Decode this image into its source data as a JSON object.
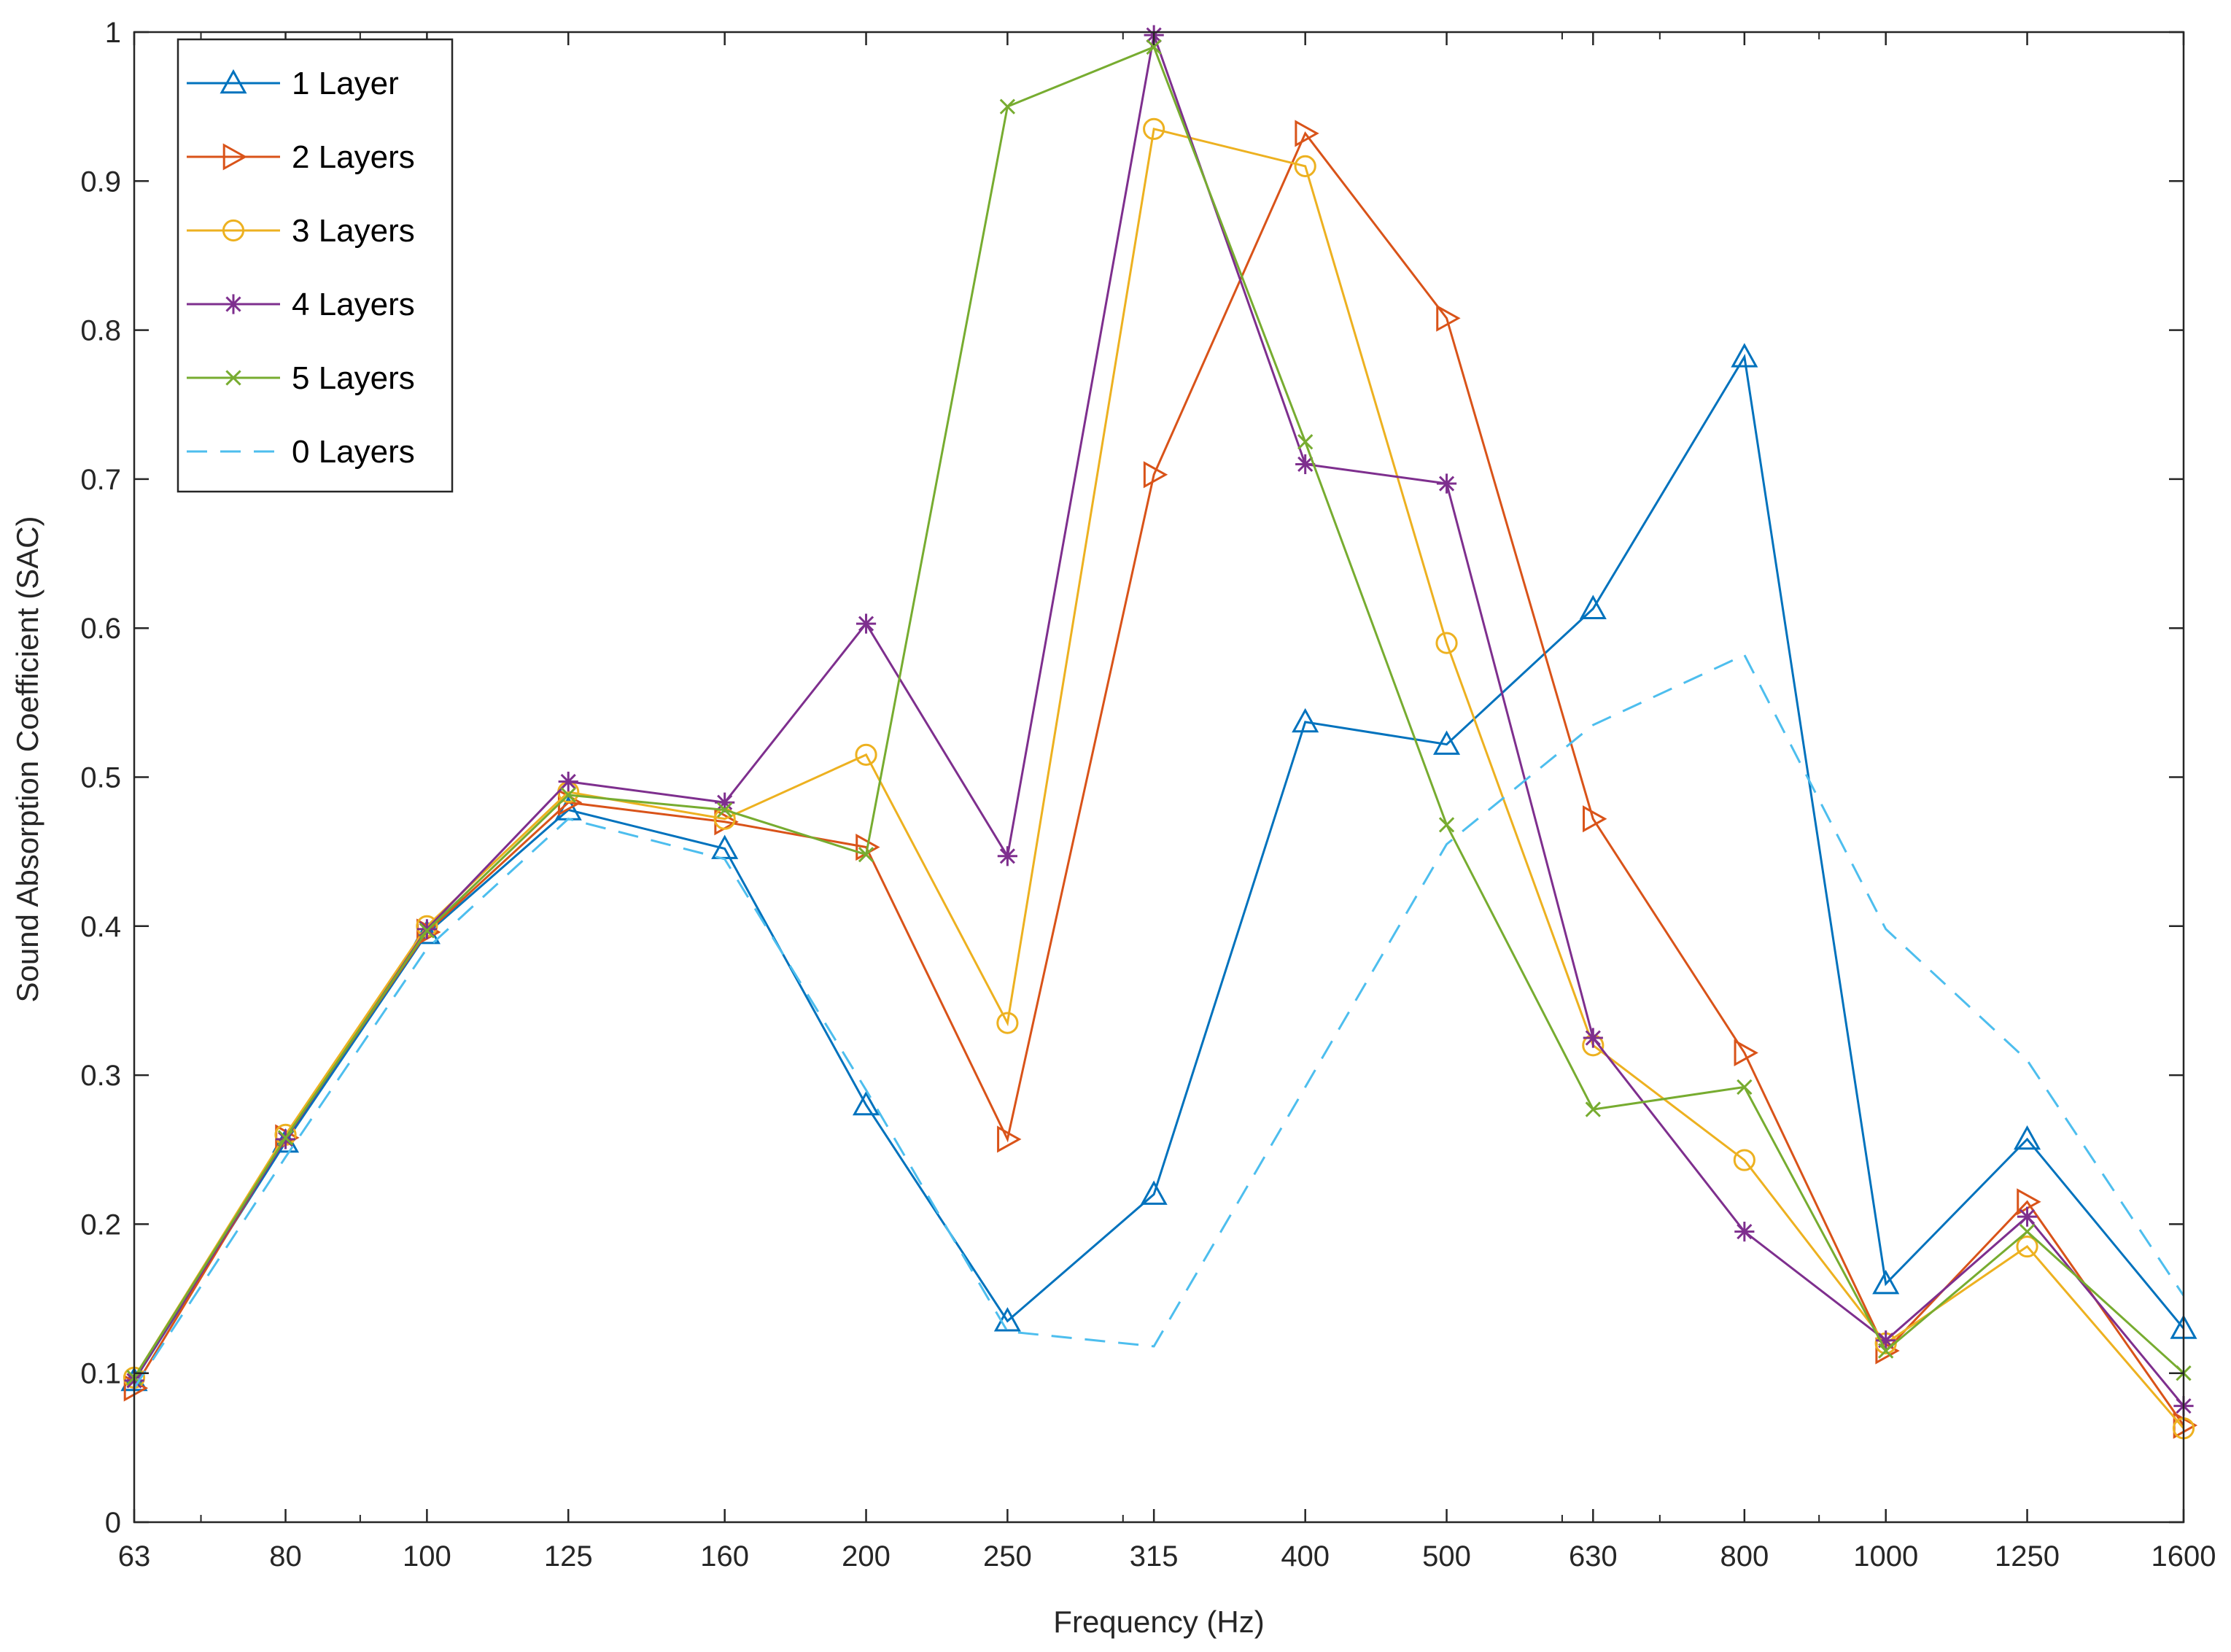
{
  "chart_data": {
    "type": "line",
    "xlabel": "Frequency (Hz)",
    "ylabel": "Sound Absorption Coefficient (SAC)",
    "categories": [
      "63",
      "80",
      "100",
      "125",
      "160",
      "200",
      "250",
      "315",
      "400",
      "500",
      "630",
      "800",
      "1000",
      "1250",
      "1600"
    ],
    "x_scale": "log",
    "ylim": [
      0,
      1
    ],
    "yticks": [
      "0",
      "0.1",
      "0.2",
      "0.3",
      "0.4",
      "0.5",
      "0.6",
      "0.7",
      "0.8",
      "0.9",
      "1"
    ],
    "grid": false,
    "legend_position": "top-left",
    "series": [
      {
        "name": "1 Layer",
        "color": "#0072BD",
        "marker": "triangle-up",
        "line": "solid",
        "values": [
          0.095,
          0.255,
          0.395,
          0.478,
          0.452,
          0.28,
          0.135,
          0.22,
          0.537,
          0.522,
          0.613,
          0.782,
          0.16,
          0.257,
          0.13
        ]
      },
      {
        "name": "2 Layers",
        "color": "#D95319",
        "marker": "triangle-right",
        "line": "solid",
        "values": [
          0.09,
          0.258,
          0.396,
          0.483,
          0.47,
          0.453,
          0.257,
          0.703,
          0.932,
          0.808,
          0.472,
          0.315,
          0.115,
          0.215,
          0.065
        ]
      },
      {
        "name": "3 Layers",
        "color": "#EDB120",
        "marker": "circle",
        "line": "solid",
        "values": [
          0.097,
          0.26,
          0.4,
          0.49,
          0.472,
          0.515,
          0.335,
          0.935,
          0.91,
          0.59,
          0.32,
          0.243,
          0.12,
          0.185,
          0.063
        ]
      },
      {
        "name": "4 Layers",
        "color": "#7E2F8E",
        "marker": "asterisk",
        "line": "solid",
        "values": [
          0.095,
          0.257,
          0.398,
          0.497,
          0.483,
          0.603,
          0.447,
          0.998,
          0.71,
          0.697,
          0.325,
          0.195,
          0.122,
          0.205,
          0.078
        ]
      },
      {
        "name": "5 Layers",
        "color": "#77AC30",
        "marker": "x",
        "line": "solid",
        "values": [
          0.097,
          0.258,
          0.397,
          0.488,
          0.478,
          0.448,
          0.95,
          0.99,
          0.725,
          0.468,
          0.277,
          0.292,
          0.115,
          0.195,
          0.1
        ]
      },
      {
        "name": "0 Layers",
        "color": "#4DBEEE",
        "marker": "none",
        "line": "dashed",
        "values": [
          0.09,
          0.245,
          0.385,
          0.472,
          0.445,
          0.29,
          0.128,
          0.118,
          0.292,
          0.455,
          0.535,
          0.582,
          0.398,
          0.31,
          0.152
        ]
      }
    ]
  }
}
